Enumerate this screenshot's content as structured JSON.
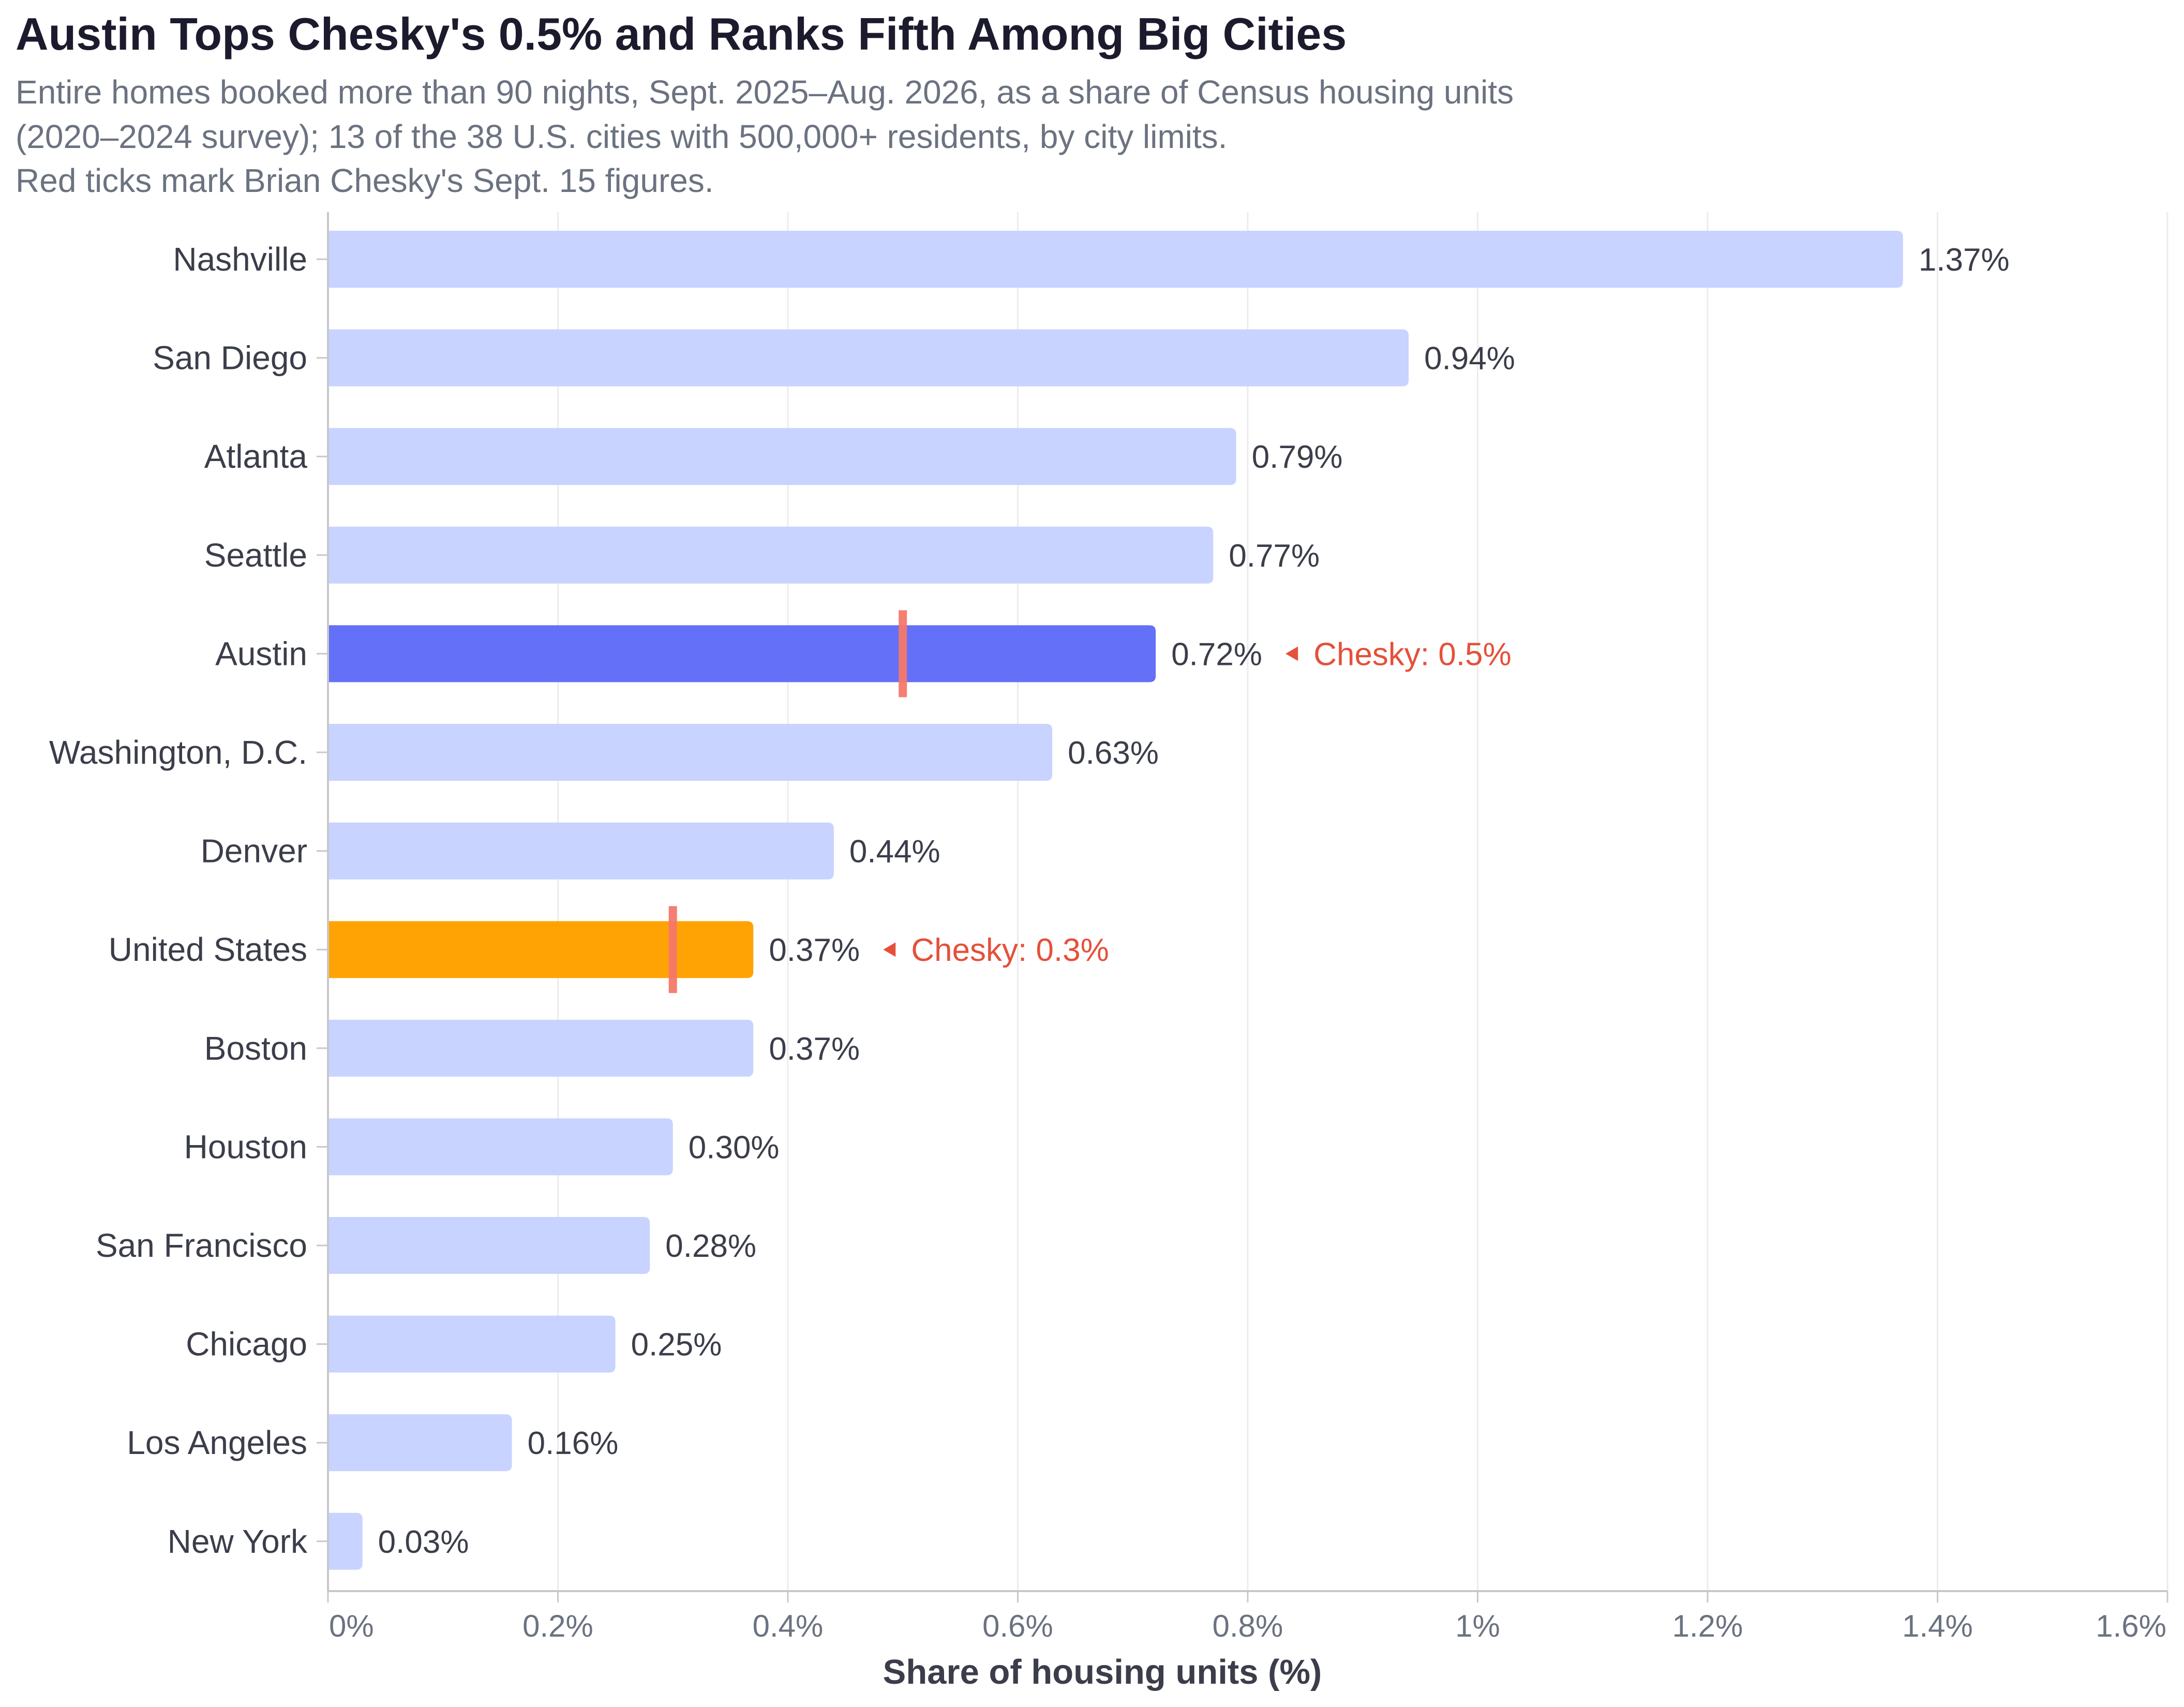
{
  "chart_data": {
    "type": "bar",
    "orientation": "horizontal",
    "title": "Austin Tops Chesky's 0.5% and Ranks Fifth Among Big Cities",
    "subtitle_lines": [
      "Entire homes booked more than 90 nights, Sept. 2025–Aug. 2026, as a share of Census housing units",
      "(2020–2024 survey); 13 of the 38 U.S. cities with 500,000+ residents, by city limits.",
      "Red ticks mark Brian Chesky's Sept. 15 figures."
    ],
    "xlabel": "Share of housing units (%)",
    "ylabel": "",
    "xlim": [
      0,
      1.6
    ],
    "x_ticks": [
      0,
      0.2,
      0.4,
      0.6,
      0.8,
      1.0,
      1.2,
      1.4,
      1.6
    ],
    "x_tick_labels": [
      "0%",
      "0.2%",
      "0.4%",
      "0.6%",
      "0.8%",
      "1%",
      "1.2%",
      "1.4%",
      "1.6%"
    ],
    "grid": "vertical",
    "categories": [
      "Nashville",
      "San Diego",
      "Atlanta",
      "Seattle",
      "Austin",
      "Washington, D.C.",
      "Denver",
      "United States",
      "Boston",
      "Houston",
      "San Francisco",
      "Chicago",
      "Los Angeles",
      "New York"
    ],
    "values": [
      1.37,
      0.94,
      0.79,
      0.77,
      0.72,
      0.63,
      0.44,
      0.37,
      0.37,
      0.3,
      0.28,
      0.25,
      0.16,
      0.03
    ],
    "value_labels": [
      "1.37%",
      "0.94%",
      "0.79%",
      "0.77%",
      "0.72%",
      "0.63%",
      "0.44%",
      "0.37%",
      "0.37%",
      "0.30%",
      "0.28%",
      "0.25%",
      "0.16%",
      "0.03%"
    ],
    "highlights": {
      "Austin": "#6470f7",
      "United States": "#ffa305"
    },
    "colors": {
      "default_bar": "#c8d3ff",
      "chesky_tick": "#f47869",
      "annotation_text": "#e5503a",
      "title_text": "#1c1b2e",
      "subtitle_text": "#6b7280",
      "axis_text": "#3b3e4a",
      "grid": "#ececec"
    },
    "annotations": [
      {
        "category": "Austin",
        "value": 0.5,
        "label": "Chesky: 0.5%"
      },
      {
        "category": "United States",
        "value": 0.3,
        "label": "Chesky: 0.3%"
      }
    ]
  }
}
